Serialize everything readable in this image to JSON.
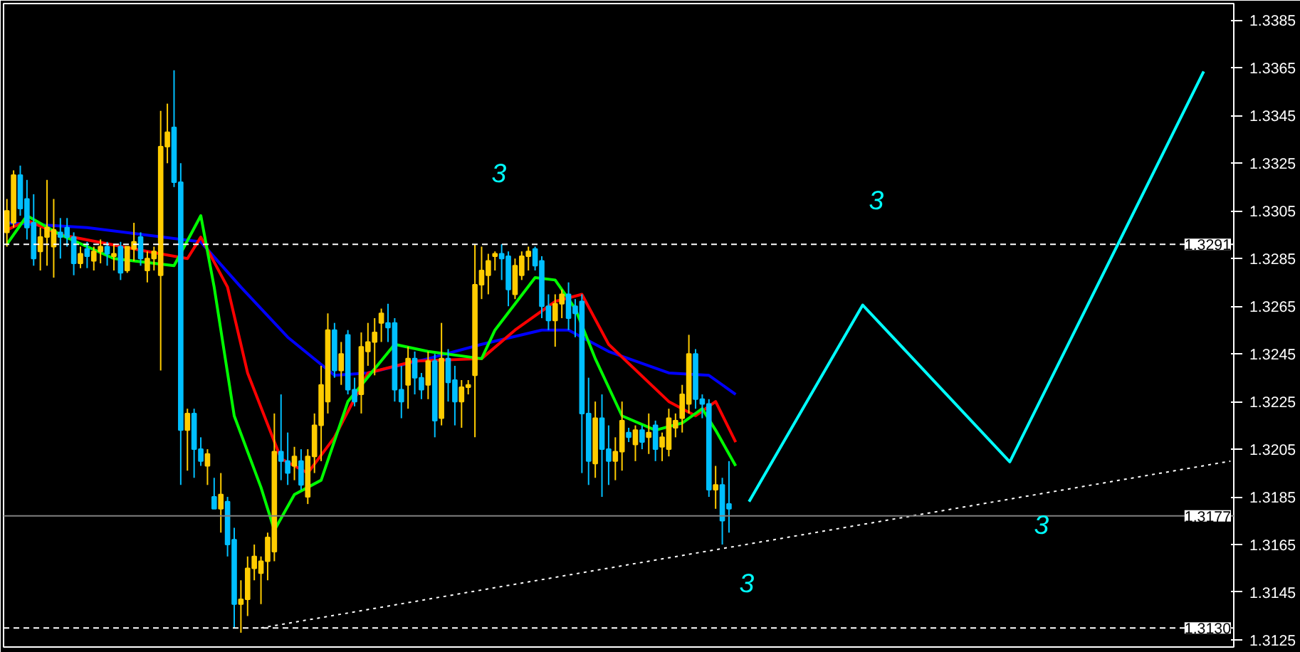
{
  "chart_data": {
    "type": "candlestick",
    "ylim": [
      1.3122,
      1.3392
    ],
    "categories": [
      null,
      null,
      null,
      null,
      null,
      null,
      null,
      null,
      null,
      null,
      null,
      null,
      null,
      null,
      null,
      null,
      null,
      null,
      null,
      null,
      null,
      null,
      null,
      null,
      null,
      null,
      null,
      null,
      null,
      null,
      null,
      null,
      null,
      null,
      null,
      null,
      null,
      null,
      null,
      null,
      null,
      null,
      null,
      null,
      null,
      null,
      null,
      null,
      null,
      null,
      null,
      null,
      null,
      null,
      null,
      null,
      null,
      null,
      null,
      null,
      null,
      null,
      null,
      null,
      null,
      null,
      null,
      null,
      null,
      null,
      null,
      null,
      null,
      null,
      null,
      null,
      null,
      null,
      null,
      null,
      null,
      null,
      null,
      null,
      null,
      null,
      null,
      null,
      null,
      null,
      null,
      null,
      null,
      null,
      null,
      null,
      null,
      null,
      null,
      null,
      null,
      null,
      null,
      null,
      null,
      null,
      null,
      null,
      null,
      null,
      null,
      null,
      null,
      null,
      null,
      null,
      null,
      null,
      null,
      null,
      null,
      null,
      null,
      null,
      null,
      null,
      null,
      null,
      null,
      null,
      null,
      null,
      null,
      null,
      null,
      null,
      null,
      null,
      null,
      null,
      null,
      null,
      null,
      null,
      null,
      null,
      null,
      null,
      null,
      null,
      null,
      null,
      null,
      null,
      null,
      null,
      null,
      null,
      null,
      null,
      null,
      null,
      null,
      null,
      null,
      null,
      null,
      null,
      null,
      null,
      null,
      null,
      null,
      null,
      null,
      null,
      null,
      null,
      null,
      null,
      null,
      null,
      null,
      null
    ],
    "yticks": [
      1.3385,
      1.3365,
      1.3345,
      1.3325,
      1.3305,
      1.3285,
      1.3265,
      1.3245,
      1.3225,
      1.3205,
      1.3185,
      1.3165,
      1.3145,
      1.3125
    ],
    "tick_labels": "y",
    "grid": false,
    "ohlc": [
      [
        1.3296,
        1.331,
        1.329,
        1.3305
      ],
      [
        1.33,
        1.3322,
        1.3298,
        1.332
      ],
      [
        1.332,
        1.3324,
        1.3303,
        1.3306
      ],
      [
        1.331,
        1.3318,
        1.3293,
        1.3298
      ],
      [
        1.33,
        1.3312,
        1.3282,
        1.3285
      ],
      [
        1.3288,
        1.3298,
        1.328,
        1.3294
      ],
      [
        1.3294,
        1.3318,
        1.3282,
        1.3298
      ],
      [
        1.329,
        1.331,
        1.3277,
        1.3297
      ],
      [
        1.3296,
        1.3302,
        1.3285,
        1.3294
      ],
      [
        1.3298,
        1.3302,
        1.329,
        1.3294
      ],
      [
        1.3294,
        1.3296,
        1.3278,
        1.3283
      ],
      [
        1.3283,
        1.329,
        1.3281,
        1.3287
      ],
      [
        1.3289,
        1.3292,
        1.3281,
        1.3286
      ],
      [
        1.3284,
        1.329,
        1.328,
        1.3288
      ],
      [
        1.3288,
        1.3293,
        1.3283,
        1.329
      ],
      [
        1.329,
        1.3292,
        1.3282,
        1.3287
      ],
      [
        1.3286,
        1.3291,
        1.328,
        1.3287
      ],
      [
        1.329,
        1.3292,
        1.3276,
        1.3279
      ],
      [
        1.328,
        1.329,
        1.3279,
        1.329
      ],
      [
        1.3289,
        1.33,
        1.3284,
        1.3292
      ],
      [
        1.3294,
        1.3296,
        1.3282,
        1.3285
      ],
      [
        1.328,
        1.3288,
        1.3275,
        1.3285
      ],
      [
        1.3285,
        1.329,
        1.328,
        1.3288
      ],
      [
        1.3278,
        1.3347,
        1.3238,
        1.3332
      ],
      [
        1.3332,
        1.335,
        1.3325,
        1.3338
      ],
      [
        1.334,
        1.3364,
        1.3315,
        1.3317
      ],
      [
        1.3317,
        1.3325,
        1.319,
        1.3213
      ],
      [
        1.3213,
        1.3222,
        1.3196,
        1.322
      ],
      [
        1.322,
        1.3222,
        1.3193,
        1.3205
      ],
      [
        1.3205,
        1.321,
        1.3198,
        1.32
      ],
      [
        1.3198,
        1.3205,
        1.319,
        1.3203
      ],
      [
        1.3185,
        1.3193,
        1.318,
        1.318
      ],
      [
        1.318,
        1.3195,
        1.317,
        1.3186
      ],
      [
        1.3183,
        1.3185,
        1.316,
        1.3165
      ],
      [
        1.3167,
        1.3172,
        1.313,
        1.314
      ],
      [
        1.314,
        1.315,
        1.3128,
        1.3142
      ],
      [
        1.3142,
        1.316,
        1.3135,
        1.3155
      ],
      [
        1.3155,
        1.3165,
        1.315,
        1.316
      ],
      [
        1.3153,
        1.316,
        1.314,
        1.3158
      ],
      [
        1.3158,
        1.317,
        1.315,
        1.3168
      ],
      [
        1.3162,
        1.322,
        1.3158,
        1.3204
      ],
      [
        1.3204,
        1.3228,
        1.3192,
        1.32
      ],
      [
        1.32,
        1.3212,
        1.319,
        1.3195
      ],
      [
        1.3198,
        1.3206,
        1.3192,
        1.3202
      ],
      [
        1.32,
        1.3205,
        1.3188,
        1.319
      ],
      [
        1.3185,
        1.3205,
        1.3182,
        1.3202
      ],
      [
        1.3202,
        1.322,
        1.3195,
        1.3215
      ],
      [
        1.3215,
        1.324,
        1.32,
        1.3232
      ],
      [
        1.3225,
        1.3262,
        1.322,
        1.3255
      ],
      [
        1.3255,
        1.3258,
        1.3235,
        1.3238
      ],
      [
        1.3238,
        1.325,
        1.3232,
        1.3245
      ],
      [
        1.3253,
        1.3255,
        1.3228,
        1.323
      ],
      [
        1.323,
        1.3235,
        1.3223,
        1.3225
      ],
      [
        1.3228,
        1.3254,
        1.322,
        1.3248
      ],
      [
        1.3246,
        1.3258,
        1.324,
        1.325
      ],
      [
        1.325,
        1.326,
        1.3236,
        1.3254
      ],
      [
        1.3258,
        1.3264,
        1.325,
        1.3262
      ],
      [
        1.3258,
        1.3266,
        1.325,
        1.3256
      ],
      [
        1.3258,
        1.326,
        1.3225,
        1.323
      ],
      [
        1.323,
        1.324,
        1.3218,
        1.3225
      ],
      [
        1.3232,
        1.3248,
        1.3222,
        1.3243
      ],
      [
        1.3243,
        1.3246,
        1.3228,
        1.3235
      ],
      [
        1.3235,
        1.3237,
        1.3226,
        1.323
      ],
      [
        1.3232,
        1.3246,
        1.3226,
        1.3242
      ],
      [
        1.3242,
        1.3245,
        1.321,
        1.3217
      ],
      [
        1.3218,
        1.3258,
        1.3215,
        1.3243
      ],
      [
        1.3243,
        1.3247,
        1.3225,
        1.3233
      ],
      [
        1.3234,
        1.324,
        1.3215,
        1.3225
      ],
      [
        1.3225,
        1.3234,
        1.3214,
        1.3231
      ],
      [
        1.3231,
        1.3234,
        1.3228,
        1.3232
      ],
      [
        1.3236,
        1.3291,
        1.321,
        1.3274
      ],
      [
        1.3274,
        1.329,
        1.3268,
        1.328
      ],
      [
        1.3278,
        1.3287,
        1.327,
        1.3284
      ],
      [
        1.3286,
        1.3288,
        1.328,
        1.3287
      ],
      [
        1.3287,
        1.3291,
        1.3276,
        1.3285
      ],
      [
        1.3286,
        1.3288,
        1.3265,
        1.3272
      ],
      [
        1.327,
        1.3285,
        1.3268,
        1.3282
      ],
      [
        1.3278,
        1.3288,
        1.3276,
        1.3286
      ],
      [
        1.3286,
        1.329,
        1.328,
        1.3288
      ],
      [
        1.3289,
        1.329,
        1.328,
        1.3282
      ],
      [
        1.3284,
        1.3286,
        1.326,
        1.3265
      ],
      [
        1.3265,
        1.327,
        1.3255,
        1.3259
      ],
      [
        1.3259,
        1.327,
        1.3248,
        1.3266
      ],
      [
        1.3266,
        1.3272,
        1.326,
        1.327
      ],
      [
        1.327,
        1.3275,
        1.3255,
        1.326
      ],
      [
        1.3265,
        1.3268,
        1.3252,
        1.3262
      ],
      [
        1.3267,
        1.327,
        1.3195,
        1.322
      ],
      [
        1.322,
        1.3235,
        1.319,
        1.32
      ],
      [
        1.3199,
        1.3225,
        1.3193,
        1.3218
      ],
      [
        1.3218,
        1.3228,
        1.3185,
        1.3205
      ],
      [
        1.3205,
        1.3215,
        1.319,
        1.32
      ],
      [
        1.32,
        1.321,
        1.3192,
        1.3204
      ],
      [
        1.3204,
        1.3225,
        1.3196,
        1.3217
      ],
      [
        1.3212,
        1.3214,
        1.3208,
        1.321
      ],
      [
        1.3207,
        1.3215,
        1.32,
        1.3213
      ],
      [
        1.3213,
        1.3215,
        1.3205,
        1.3208
      ],
      [
        1.321,
        1.322,
        1.3203,
        1.3212
      ],
      [
        1.3215,
        1.3217,
        1.32,
        1.3205
      ],
      [
        1.3206,
        1.3212,
        1.32,
        1.321
      ],
      [
        1.3205,
        1.3222,
        1.3202,
        1.3218
      ],
      [
        1.3214,
        1.322,
        1.321,
        1.3217
      ],
      [
        1.3218,
        1.3232,
        1.3212,
        1.3228
      ],
      [
        1.3224,
        1.3253,
        1.322,
        1.3245
      ],
      [
        1.3245,
        1.3247,
        1.3222,
        1.3226
      ],
      [
        1.3226,
        1.3228,
        1.3218,
        1.3224
      ],
      [
        1.3224,
        1.3226,
        1.3185,
        1.3188
      ],
      [
        1.3188,
        1.3198,
        1.318,
        1.319
      ],
      [
        1.319,
        1.3193,
        1.3165,
        1.3175
      ],
      [
        1.3182,
        1.32,
        1.317,
        1.318
      ],
      null,
      null,
      null,
      null,
      null,
      null,
      null,
      null,
      null,
      null,
      null,
      null,
      null,
      null,
      null,
      null,
      null,
      null,
      null,
      null,
      null,
      null,
      null,
      null,
      null,
      null,
      null,
      null,
      null,
      null,
      null,
      null,
      null,
      null,
      null,
      null,
      null,
      null,
      null,
      null,
      null,
      null,
      null,
      null,
      null,
      null,
      null,
      null,
      null,
      null,
      null,
      null,
      null,
      null,
      null,
      null,
      null,
      null,
      null,
      null,
      null,
      null,
      null,
      null,
      null,
      null,
      null,
      null,
      null,
      null,
      null,
      null,
      null,
      null,
      null
    ],
    "colors": [
      "#ffcc00",
      "#ffcc00",
      "#00bfff",
      "#00bfff",
      "#00bfff",
      "#ffcc00",
      "#ffcc00",
      "#ffcc00",
      "#00bfff",
      "#00bfff",
      "#00bfff",
      "#ffcc00",
      "#00bfff",
      "#ffcc00",
      "#ffcc00",
      "#00bfff",
      "#ffcc00",
      "#00bfff",
      "#ffcc00",
      "#ffcc00",
      "#00bfff",
      "#ffcc00",
      "#ffcc00",
      "#ffcc00",
      "#ffcc00",
      "#00bfff",
      "#00bfff",
      "#ffcc00",
      "#00bfff",
      "#00bfff",
      "#ffcc00",
      "#00bfff",
      "#ffcc00",
      "#00bfff",
      "#00bfff",
      "#ffcc00",
      "#ffcc00",
      "#ffcc00",
      "#ffcc00",
      "#ffcc00",
      "#ffcc00",
      "#00bfff",
      "#00bfff",
      "#ffcc00",
      "#00bfff",
      "#ffcc00",
      "#ffcc00",
      "#ffcc00",
      "#ffcc00",
      "#00bfff",
      "#ffcc00",
      "#00bfff",
      "#00bfff",
      "#ffcc00",
      "#ffcc00",
      "#ffcc00",
      "#ffcc00",
      "#00bfff",
      "#00bfff",
      "#00bfff",
      "#ffcc00",
      "#00bfff",
      "#00bfff",
      "#ffcc00",
      "#00bfff",
      "#ffcc00",
      "#00bfff",
      "#00bfff",
      "#ffcc00",
      "#ffcc00",
      "#ffcc00",
      "#ffcc00",
      "#ffcc00",
      "#ffcc00",
      "#00bfff",
      "#00bfff",
      "#ffcc00",
      "#ffcc00",
      "#ffcc00",
      "#00bfff",
      "#00bfff",
      "#00bfff",
      "#ffcc00",
      "#ffcc00",
      "#00bfff",
      "#00bfff",
      "#00bfff",
      "#00bfff",
      "#ffcc00",
      "#00bfff",
      "#00bfff",
      "#ffcc00",
      "#ffcc00",
      "#00bfff",
      "#ffcc00",
      "#00bfff",
      "#ffcc00",
      "#00bfff",
      "#ffcc00",
      "#ffcc00",
      "#ffcc00",
      "#ffcc00",
      "#ffcc00",
      "#00bfff",
      "#00bfff",
      "#00bfff",
      "#ffcc00",
      "#00bfff",
      "#00bfff",
      null,
      null,
      null,
      null,
      null,
      null,
      null,
      null,
      null,
      null,
      null,
      null,
      null,
      null,
      null,
      null,
      null,
      null,
      null,
      null,
      null,
      null,
      null,
      null,
      null,
      null,
      null,
      null,
      null,
      null,
      null,
      null,
      null,
      null,
      null,
      null,
      null,
      null,
      null,
      null,
      null,
      null,
      null,
      null,
      null,
      null,
      null,
      null,
      null,
      null,
      null,
      null,
      null,
      null,
      null,
      null,
      null,
      null,
      null,
      null,
      null,
      null,
      null,
      null,
      null,
      null,
      null,
      null,
      null,
      null,
      null,
      null,
      null,
      null,
      null
    ],
    "series": [
      {
        "type": "line",
        "color": "#0000ff",
        "values": [
          1.33,
          null,
          null,
          null,
          null,
          null,
          null,
          null,
          null,
          null,
          null,
          null,
          1.3298,
          null,
          null,
          null,
          null,
          null,
          null,
          null,
          null,
          null,
          null,
          null,
          null,
          null,
          null,
          null,
          null,
          1.3292,
          null,
          null,
          null,
          null,
          null,
          1.3273,
          null,
          null,
          null,
          null,
          null,
          null,
          1.3252,
          null,
          null,
          null,
          null,
          null,
          null,
          1.3236,
          null,
          null,
          null,
          null,
          1.3237,
          null,
          null,
          null,
          null,
          null,
          null,
          null,
          null,
          1.3243,
          null,
          null,
          null,
          null,
          null,
          null,
          null,
          1.3249,
          null,
          null,
          null,
          null,
          null,
          null,
          null,
          null,
          1.3255,
          null,
          null,
          null,
          1.3255,
          null,
          null,
          null,
          null,
          null,
          1.3246,
          null,
          null,
          null,
          null,
          null,
          null,
          null,
          null,
          1.3237,
          null,
          null,
          null,
          null,
          null,
          1.3236,
          null,
          null,
          null,
          1.3228,
          null,
          null,
          null,
          null,
          null,
          null,
          null,
          null,
          null,
          null,
          null,
          null,
          null,
          null,
          null,
          null,
          null,
          null,
          null,
          null,
          null,
          null,
          null,
          null,
          null,
          null,
          null,
          null,
          null,
          null,
          null,
          null,
          null,
          null,
          null,
          null,
          null,
          null,
          null,
          null,
          null,
          null,
          null,
          null,
          null,
          null,
          null,
          null,
          null,
          null,
          null,
          null,
          null,
          null,
          null,
          null,
          null,
          null,
          null,
          null,
          null,
          null,
          null,
          null,
          null,
          null,
          null,
          null,
          null,
          null,
          null,
          null,
          null,
          null
        ]
      },
      {
        "type": "line",
        "color": "#ff0000",
        "values": [
          1.3297,
          null,
          null,
          1.3301,
          null,
          null,
          null,
          null,
          1.3295,
          null,
          null,
          null,
          null,
          null,
          null,
          null,
          null,
          null,
          null,
          null,
          null,
          1.3288,
          null,
          null,
          null,
          null,
          null,
          1.3285,
          null,
          1.3294,
          null,
          null,
          null,
          1.3273,
          null,
          null,
          1.3237,
          null,
          null,
          null,
          null,
          1.3201,
          null,
          null,
          null,
          1.3195,
          null,
          null,
          null,
          1.321,
          null,
          null,
          null,
          null,
          1.3237,
          null,
          null,
          null,
          null,
          null,
          null,
          1.3242,
          null,
          null,
          null,
          null,
          null,
          null,
          null,
          null,
          null,
          1.3243,
          null,
          null,
          null,
          null,
          1.3255,
          null,
          null,
          null,
          null,
          null,
          1.3267,
          null,
          null,
          null,
          1.327,
          null,
          null,
          null,
          1.3249,
          null,
          null,
          null,
          null,
          null,
          null,
          null,
          null,
          1.3225,
          null,
          null,
          null,
          1.3219,
          null,
          null,
          1.3225,
          null,
          null,
          1.3208,
          null,
          null,
          null,
          null,
          null,
          null,
          null,
          null,
          null,
          null,
          null,
          null,
          null,
          null,
          null,
          null,
          null,
          null,
          null,
          null,
          null,
          null,
          null,
          null,
          null,
          null,
          null,
          null,
          null,
          null,
          null,
          null,
          null,
          null,
          null,
          null,
          null,
          null,
          null,
          null,
          null,
          null,
          null,
          null,
          null,
          null,
          null,
          null,
          null,
          null,
          null,
          null,
          null,
          null,
          null,
          null,
          null,
          null,
          null,
          null,
          null,
          null,
          null,
          null,
          null,
          null,
          null,
          null,
          null,
          null,
          null,
          null,
          null,
          null
        ]
      },
      {
        "type": "line",
        "color": "#00ff00",
        "values": [
          1.3291,
          null,
          null,
          1.3303,
          null,
          null,
          null,
          null,
          1.3295,
          null,
          null,
          null,
          null,
          null,
          null,
          null,
          1.3285,
          null,
          null,
          null,
          null,
          null,
          null,
          null,
          null,
          1.3282,
          null,
          null,
          null,
          1.3303,
          null,
          1.3273,
          null,
          null,
          1.3219,
          null,
          null,
          null,
          1.3189,
          null,
          1.3171,
          null,
          null,
          1.3186,
          null,
          null,
          null,
          1.3192,
          null,
          null,
          null,
          1.3225,
          null,
          null,
          null,
          null,
          null,
          null,
          1.3249,
          null,
          null,
          null,
          null,
          1.3246,
          null,
          null,
          null,
          null,
          null,
          null,
          null,
          1.3243,
          null,
          1.3255,
          null,
          null,
          null,
          null,
          null,
          1.3277,
          null,
          null,
          1.3276,
          null,
          null,
          1.3264,
          null,
          null,
          1.3243,
          null,
          null,
          null,
          1.3219,
          null,
          null,
          null,
          null,
          1.3213,
          null,
          null,
          null,
          1.3216,
          null,
          null,
          1.3222,
          null,
          1.3213,
          null,
          null,
          1.3198,
          null,
          null,
          null,
          null,
          null,
          null,
          null,
          null,
          null,
          null,
          null,
          null,
          null,
          null,
          null,
          null,
          null,
          null,
          null,
          null,
          null,
          null,
          null,
          null,
          null,
          null,
          null,
          null,
          null,
          null,
          null,
          null,
          null,
          null,
          null,
          null,
          null,
          null,
          null,
          null,
          null,
          null,
          null,
          null,
          null,
          null,
          null,
          null,
          null,
          null,
          null,
          null,
          null,
          null,
          null,
          null,
          null,
          null,
          null,
          null,
          null,
          null,
          null,
          null,
          null,
          null,
          null,
          null,
          null,
          null,
          null,
          null,
          null,
          null
        ]
      },
      {
        "type": "line",
        "color": "#ffffff",
        "line_style": "dotted",
        "values": [
          null,
          null,
          null,
          null,
          null,
          null,
          null,
          null,
          null,
          null,
          null,
          null,
          null,
          null,
          null,
          null,
          null,
          null,
          null,
          null,
          null,
          null,
          null,
          null,
          null,
          null,
          null,
          null,
          null,
          null,
          null,
          null,
          null,
          null,
          null,
          null,
          null,
          null,
          1.313,
          null,
          null,
          null,
          null,
          null,
          null,
          null,
          null,
          null,
          null,
          null,
          null,
          null,
          null,
          null,
          null,
          null,
          null,
          null,
          null,
          null,
          null,
          null,
          null,
          null,
          null,
          null,
          null,
          null,
          null,
          null,
          null,
          null,
          null,
          null,
          null,
          null,
          null,
          null,
          null,
          null,
          null,
          null,
          null,
          null,
          null,
          null,
          null,
          null,
          null,
          null,
          null,
          null,
          null,
          null,
          null,
          null,
          null,
          null,
          null,
          null,
          null,
          null,
          null,
          null,
          null,
          null,
          null,
          null,
          null,
          null,
          null,
          null,
          null,
          null,
          null,
          null,
          null,
          null,
          null,
          null,
          null,
          null,
          null,
          null,
          null,
          null,
          null,
          null,
          null,
          null,
          null,
          null,
          null,
          null,
          null,
          null,
          null,
          null,
          null,
          null,
          null,
          null,
          null,
          null,
          null,
          null,
          null,
          null,
          null,
          null,
          null,
          null,
          null,
          null,
          null,
          null,
          null,
          null,
          null,
          null,
          null,
          null,
          null,
          null,
          null,
          null,
          null,
          null,
          null,
          null,
          null,
          null,
          null,
          null,
          null,
          null,
          null,
          null,
          null,
          null,
          null,
          null,
          null,
          1.32
        ]
      },
      {
        "type": "line",
        "color": "#00ffff",
        "values": [
          null,
          null,
          null,
          null,
          null,
          null,
          null,
          null,
          null,
          null,
          null,
          null,
          null,
          null,
          null,
          null,
          null,
          null,
          null,
          null,
          null,
          null,
          null,
          null,
          null,
          null,
          null,
          null,
          null,
          null,
          null,
          null,
          null,
          null,
          null,
          null,
          null,
          null,
          null,
          null,
          null,
          null,
          null,
          null,
          null,
          null,
          null,
          null,
          null,
          null,
          null,
          null,
          null,
          null,
          null,
          null,
          null,
          null,
          null,
          null,
          null,
          null,
          null,
          null,
          null,
          null,
          null,
          null,
          null,
          null,
          null,
          null,
          null,
          null,
          null,
          null,
          null,
          null,
          null,
          null,
          null,
          null,
          null,
          null,
          null,
          null,
          null,
          null,
          null,
          null,
          null,
          null,
          null,
          null,
          null,
          null,
          null,
          null,
          null,
          null,
          null,
          null,
          null,
          null,
          null,
          null,
          null,
          null,
          null,
          null,
          null,
          1.3183,
          null,
          null,
          null,
          null,
          null,
          null,
          null,
          null,
          null,
          null,
          null,
          null,
          null,
          null,
          null,
          null,
          1.32655,
          null,
          null,
          null,
          null,
          null,
          null,
          null,
          null,
          null,
          null,
          null,
          null,
          null,
          null,
          null,
          null,
          null,
          null,
          null,
          null,
          null,
          1.31997,
          null,
          null,
          null,
          null,
          null,
          null,
          null,
          null,
          null,
          null,
          null,
          null,
          null,
          null,
          null,
          null,
          null,
          null,
          null,
          null,
          null,
          null,
          null,
          null,
          null,
          null,
          null,
          null,
          1.33635,
          null,
          null,
          null,
          null
        ]
      }
    ],
    "ref_lines": [
      {
        "axis": "y",
        "value": 1.3291,
        "label": "1.3291",
        "color": "#ffffff",
        "line_style": "dashed"
      },
      {
        "axis": "y",
        "value": 1.3177,
        "label": "1.3177",
        "color": "#808080",
        "line_style": "solid"
      },
      {
        "axis": "y",
        "value": 1.313,
        "label": "1.3130",
        "color": "#ffffff",
        "line_style": "dashed"
      }
    ],
    "annotations": [
      "3",
      "3",
      "3",
      "3"
    ]
  }
}
